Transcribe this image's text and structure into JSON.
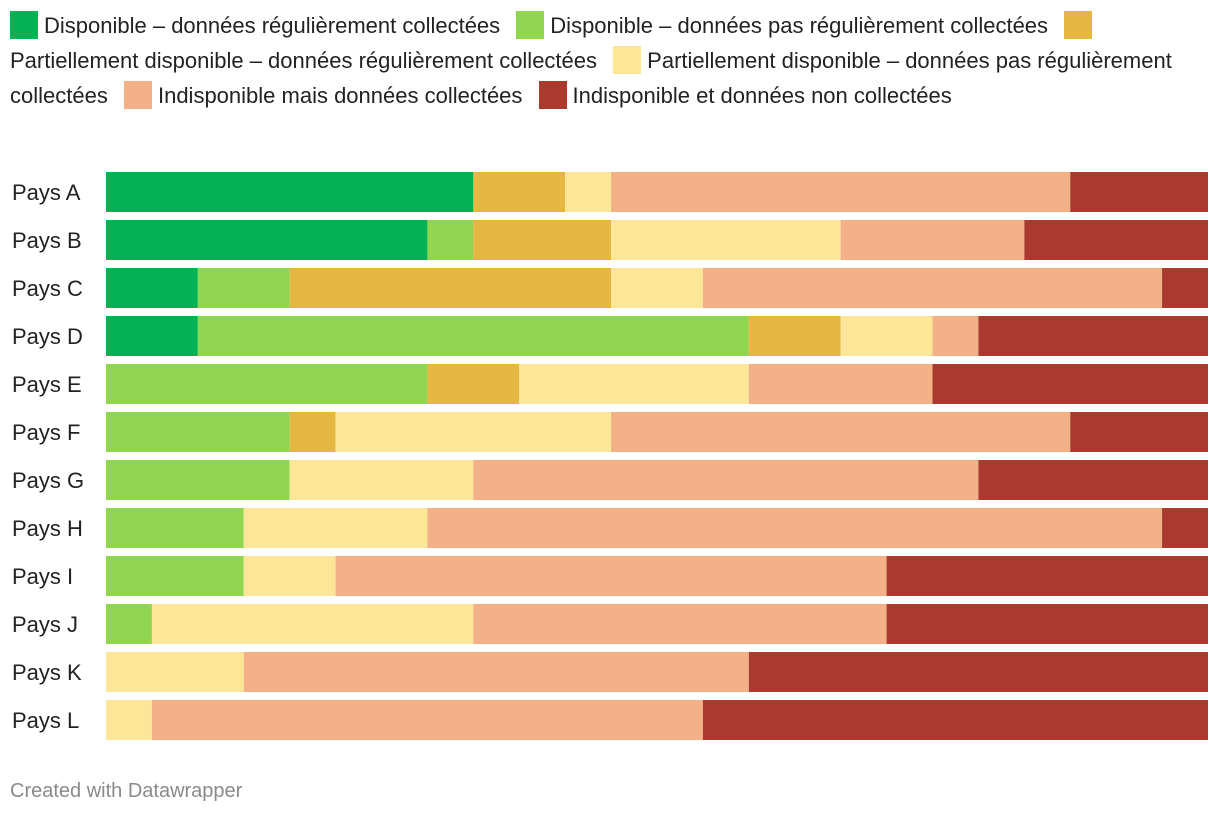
{
  "chart_data": {
    "type": "bar",
    "orientation": "horizontal",
    "stacked": true,
    "normalized": true,
    "categories": [
      "Pays A",
      "Pays B",
      "Pays C",
      "Pays D",
      "Pays E",
      "Pays F",
      "Pays G",
      "Pays H",
      "Pays I",
      "Pays J",
      "Pays K",
      "Pays L"
    ],
    "series": [
      {
        "name": "Disponible – données régulièrement collectées",
        "color": "#05b152",
        "values": [
          8,
          7,
          2,
          2,
          0,
          0,
          0,
          0,
          0,
          0,
          0,
          0
        ]
      },
      {
        "name": "Disponible – données pas régulièrement collectées",
        "color": "#92d550",
        "values": [
          0,
          1,
          2,
          12,
          7,
          4,
          4,
          3,
          3,
          1,
          0,
          0
        ]
      },
      {
        "name": "Partiellement disponible – données régulièrement collectées",
        "color": "#e6b843",
        "values": [
          2,
          3,
          7,
          2,
          2,
          1,
          0,
          0,
          0,
          0,
          0,
          0
        ]
      },
      {
        "name": "Partiellement disponible – données pas régulièrement collectées",
        "color": "#fde698",
        "values": [
          1,
          5,
          2,
          2,
          5,
          6,
          4,
          4,
          2,
          7,
          3,
          1
        ]
      },
      {
        "name": "Indisponible mais données collectées",
        "color": "#f4b086",
        "values": [
          10,
          4,
          10,
          1,
          4,
          10,
          11,
          16,
          12,
          9,
          11,
          12
        ]
      },
      {
        "name": "Indisponible et données non collectées",
        "color": "#aa3a2e",
        "values": [
          3,
          4,
          1,
          5,
          6,
          3,
          5,
          1,
          7,
          7,
          10,
          11
        ]
      }
    ],
    "title": "",
    "xlabel": "",
    "ylabel": "",
    "legend": "top"
  },
  "footer": {
    "credit": "Created with Datawrapper"
  }
}
